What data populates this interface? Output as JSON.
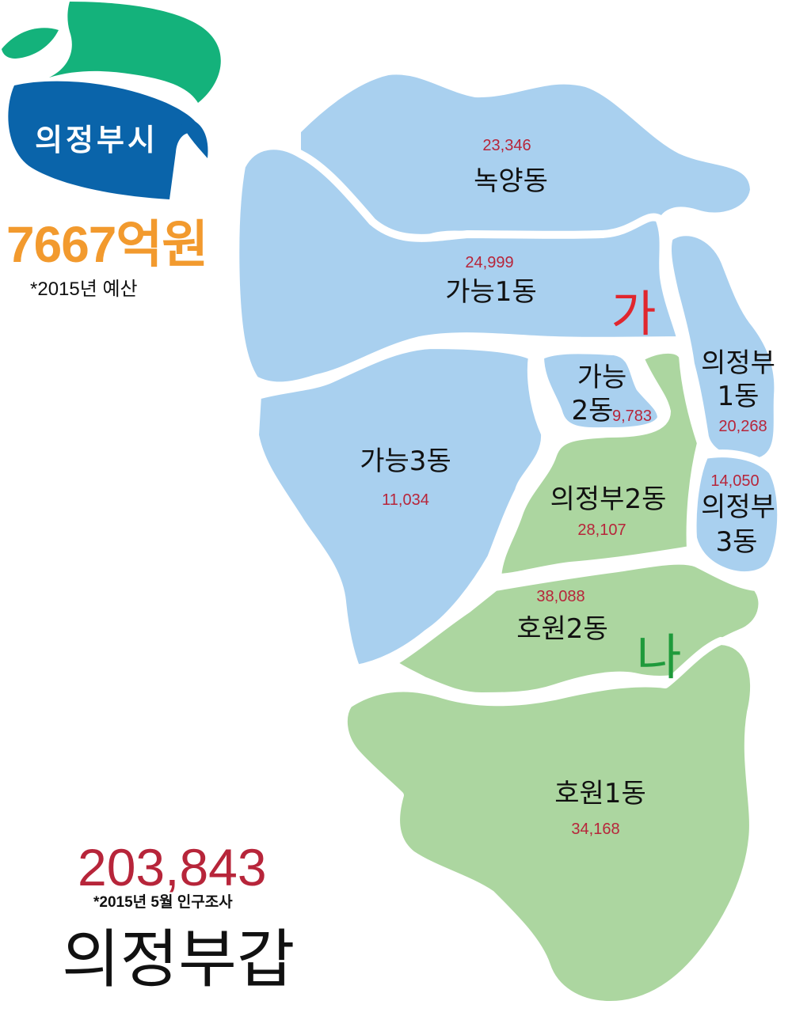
{
  "logo": {
    "text": "의정부시",
    "colors": {
      "green": "#14b27b",
      "blue": "#0a64aa"
    }
  },
  "budget": {
    "amount": "7667억원",
    "note": "*2015년 예산",
    "color": "#f29a2e"
  },
  "population": {
    "total": "203,843",
    "note": "*2015년 5월 인구조사",
    "color": "#b7253a"
  },
  "district": "의정부갑",
  "zones": [
    {
      "label": "가",
      "color": "#e0262e"
    },
    {
      "label": "나",
      "color": "#1e9a3b"
    }
  ],
  "dongs": [
    {
      "name": "녹양동",
      "population": "23,346",
      "zone": "가"
    },
    {
      "name": "가능1동",
      "population": "24,999",
      "zone": "가"
    },
    {
      "name": "가능2동",
      "population": "9,783",
      "zone": "가"
    },
    {
      "name": "가능3동",
      "population": "11,034",
      "zone": "가"
    },
    {
      "name": "의정부1동",
      "population": "20,268",
      "zone": "가"
    },
    {
      "name": "의정부3동",
      "population": "14,050",
      "zone": "가"
    },
    {
      "name": "의정부2동",
      "population": "28,107",
      "zone": "나"
    },
    {
      "name": "호원2동",
      "population": "38,088",
      "zone": "나"
    },
    {
      "name": "호원1동",
      "population": "34,168",
      "zone": "나"
    }
  ],
  "dong_name_lines": {
    "ganeung2": [
      "가능",
      "2동"
    ],
    "uijeongbu1": [
      "의정부",
      "1동"
    ],
    "uijeongbu3": [
      "의정부",
      "3동"
    ]
  },
  "colors": {
    "zone_ga_fill": "#a9d0ef",
    "zone_na_fill": "#acd6a0",
    "population_text": "#b7253a"
  }
}
